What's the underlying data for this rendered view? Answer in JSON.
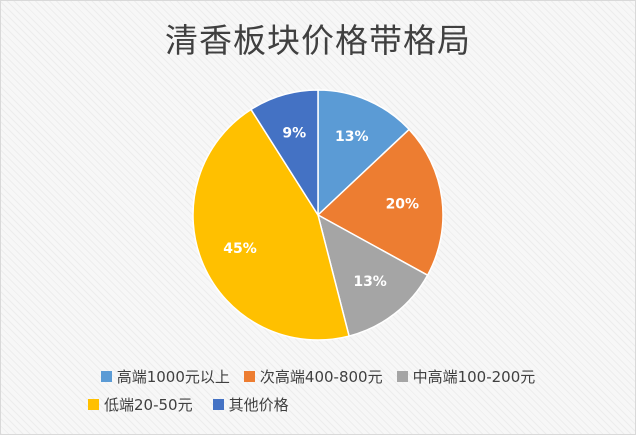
{
  "chart_data": {
    "type": "pie",
    "title": "清香板块价格带格局",
    "categories": [
      "高端1000元以上",
      "次高端400-800元",
      "中高端100-200元",
      "低端20-50元",
      "其他价格"
    ],
    "values": [
      13,
      20,
      13,
      45,
      9
    ],
    "labels": [
      "13%",
      "20%",
      "13%",
      "45%",
      "9%"
    ],
    "colors": [
      "#5b9bd5",
      "#ed7d31",
      "#a5a5a5",
      "#ffc000",
      "#4472c4"
    ],
    "start_angle_deg": 0,
    "direction": "clockwise",
    "legend_position": "bottom"
  }
}
